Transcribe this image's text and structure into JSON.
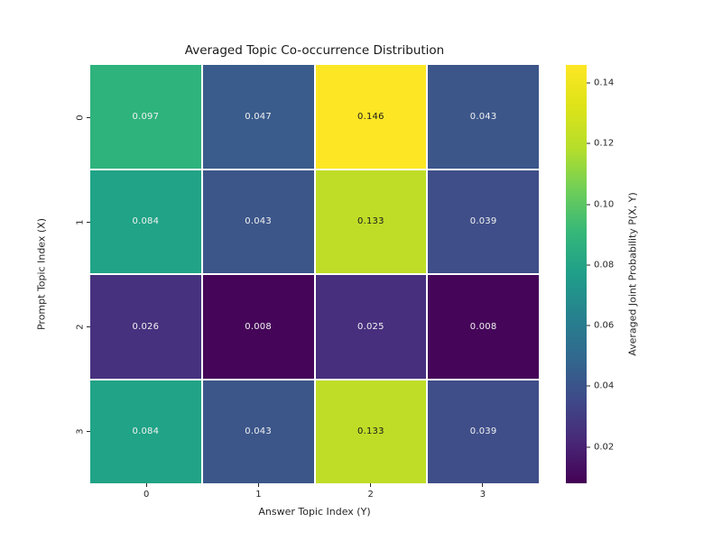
{
  "figure": {
    "background": "#ffffff",
    "text_color": "#262626"
  },
  "chart_data": {
    "type": "heatmap",
    "title": "Averaged Topic Co-occurrence Distribution",
    "xlabel": "Answer Topic Index (Y)",
    "ylabel": "Prompt Topic Index (X)",
    "x_tick_labels": [
      "0",
      "1",
      "2",
      "3"
    ],
    "y_tick_labels": [
      "0",
      "1",
      "2",
      "3"
    ],
    "values": [
      [
        0.097,
        0.047,
        0.146,
        0.043
      ],
      [
        0.084,
        0.043,
        0.133,
        0.039
      ],
      [
        0.026,
        0.008,
        0.025,
        0.008
      ],
      [
        0.084,
        0.043,
        0.133,
        0.039
      ]
    ],
    "cell_labels": [
      [
        "0.097",
        "0.047",
        "0.146",
        "0.043"
      ],
      [
        "0.084",
        "0.043",
        "0.133",
        "0.039"
      ],
      [
        "0.026",
        "0.008",
        "0.025",
        "0.008"
      ],
      [
        "0.084",
        "0.043",
        "0.133",
        "0.039"
      ]
    ],
    "cell_colors": [
      [
        "#2eb37c",
        "#3a5c8c",
        "#fde725",
        "#3c568a"
      ],
      [
        "#20a386",
        "#3c568a",
        "#bfdd27",
        "#3f4e89"
      ],
      [
        "#46317e",
        "#450559",
        "#472f7e",
        "#450559"
      ],
      [
        "#20a386",
        "#3c568a",
        "#bfdd27",
        "#3f4e89"
      ]
    ],
    "cell_text_colors": [
      [
        "#f2f2f2",
        "#f2f2f2",
        "#1a1a1a",
        "#f2f2f2"
      ],
      [
        "#f2f2f2",
        "#f2f2f2",
        "#1a1a1a",
        "#f2f2f2"
      ],
      [
        "#f2f2f2",
        "#f2f2f2",
        "#f2f2f2",
        "#f2f2f2"
      ],
      [
        "#f2f2f2",
        "#f2f2f2",
        "#1a1a1a",
        "#f2f2f2"
      ]
    ],
    "vmin": 0.008,
    "vmax": 0.146,
    "grid_line_color": "#ffffff",
    "colormap": "viridis",
    "colormap_stops": [
      "#440154",
      "#482878",
      "#3e4a89",
      "#31688e",
      "#26828e",
      "#1f9e89",
      "#35b779",
      "#6ece58",
      "#b5de2b",
      "#dde318",
      "#fde725"
    ],
    "legend_position": "right",
    "colorbar": {
      "label": "Averaged Joint Probability P(X, Y)",
      "tick_labels": [
        "0.14",
        "0.12",
        "0.10",
        "0.08",
        "0.06",
        "0.04",
        "0.02"
      ],
      "tick_values": [
        0.14,
        0.12,
        0.1,
        0.08,
        0.06,
        0.04,
        0.02
      ]
    }
  }
}
